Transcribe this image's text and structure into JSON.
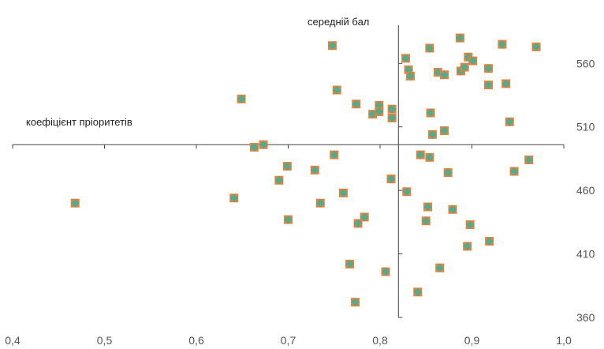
{
  "chart_data": {
    "type": "scatter",
    "title": "",
    "xlabel": "коефіцієнт пріоритетів",
    "ylabel": "середній бал",
    "xlim": [
      0.4,
      1.0
    ],
    "ylim": [
      360,
      590
    ],
    "x_ticks": [
      "0,4",
      "0,5",
      "0,6",
      "0,7",
      "0,8",
      "0,9",
      "1,0"
    ],
    "y_ticks": [
      "360",
      "410",
      "460",
      "510",
      "560"
    ],
    "x_axis_crosses_y": 496,
    "y_axis_crosses_x": 0.82,
    "grid": false,
    "marker": {
      "fill": "#5aa88a",
      "border": "#e8823a",
      "shape": "diamond-in-square"
    },
    "axis_color": "#444444",
    "points": [
      {
        "x": 0.468,
        "y": 450
      },
      {
        "x": 0.641,
        "y": 454
      },
      {
        "x": 0.649,
        "y": 532
      },
      {
        "x": 0.663,
        "y": 494
      },
      {
        "x": 0.673,
        "y": 496
      },
      {
        "x": 0.69,
        "y": 468
      },
      {
        "x": 0.699,
        "y": 479
      },
      {
        "x": 0.7,
        "y": 437
      },
      {
        "x": 0.729,
        "y": 476
      },
      {
        "x": 0.735,
        "y": 450
      },
      {
        "x": 0.748,
        "y": 574
      },
      {
        "x": 0.75,
        "y": 488
      },
      {
        "x": 0.753,
        "y": 539
      },
      {
        "x": 0.76,
        "y": 458
      },
      {
        "x": 0.767,
        "y": 402
      },
      {
        "x": 0.773,
        "y": 372
      },
      {
        "x": 0.774,
        "y": 528
      },
      {
        "x": 0.776,
        "y": 434
      },
      {
        "x": 0.783,
        "y": 439
      },
      {
        "x": 0.792,
        "y": 520
      },
      {
        "x": 0.799,
        "y": 527
      },
      {
        "x": 0.799,
        "y": 522
      },
      {
        "x": 0.806,
        "y": 396
      },
      {
        "x": 0.812,
        "y": 469
      },
      {
        "x": 0.813,
        "y": 524
      },
      {
        "x": 0.813,
        "y": 517
      },
      {
        "x": 0.828,
        "y": 564
      },
      {
        "x": 0.829,
        "y": 459
      },
      {
        "x": 0.831,
        "y": 555
      },
      {
        "x": 0.833,
        "y": 550
      },
      {
        "x": 0.841,
        "y": 380
      },
      {
        "x": 0.844,
        "y": 488
      },
      {
        "x": 0.85,
        "y": 436
      },
      {
        "x": 0.852,
        "y": 447
      },
      {
        "x": 0.854,
        "y": 572
      },
      {
        "x": 0.854,
        "y": 486
      },
      {
        "x": 0.855,
        "y": 521
      },
      {
        "x": 0.857,
        "y": 504
      },
      {
        "x": 0.863,
        "y": 553
      },
      {
        "x": 0.865,
        "y": 399
      },
      {
        "x": 0.87,
        "y": 507
      },
      {
        "x": 0.87,
        "y": 551
      },
      {
        "x": 0.874,
        "y": 474
      },
      {
        "x": 0.879,
        "y": 445
      },
      {
        "x": 0.887,
        "y": 580
      },
      {
        "x": 0.888,
        "y": 554
      },
      {
        "x": 0.892,
        "y": 557
      },
      {
        "x": 0.895,
        "y": 416
      },
      {
        "x": 0.896,
        "y": 565
      },
      {
        "x": 0.898,
        "y": 433
      },
      {
        "x": 0.901,
        "y": 562
      },
      {
        "x": 0.918,
        "y": 556
      },
      {
        "x": 0.919,
        "y": 420
      },
      {
        "x": 0.918,
        "y": 543
      },
      {
        "x": 0.933,
        "y": 575
      },
      {
        "x": 0.937,
        "y": 544
      },
      {
        "x": 0.941,
        "y": 514
      },
      {
        "x": 0.946,
        "y": 475
      },
      {
        "x": 0.962,
        "y": 484
      },
      {
        "x": 0.97,
        "y": 573
      }
    ]
  }
}
